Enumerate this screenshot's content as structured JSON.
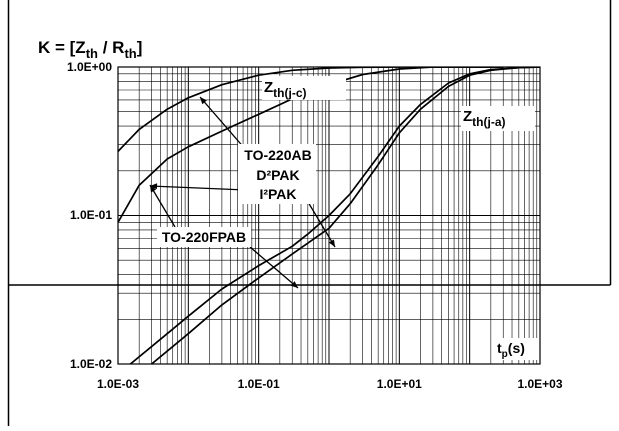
{
  "chart_data": {
    "type": "line",
    "title": "K = [Z",
    "title_sub1": "th",
    "title_mid": " / R",
    "title_sub2": "th",
    "title_end": "]",
    "xlabel": "t",
    "xlabel_sub": "p",
    "xlabel_suffix": "(s)",
    "x_scale": "log",
    "y_scale": "log",
    "xlim": [
      0.001,
      1000
    ],
    "ylim": [
      0.01,
      1
    ],
    "x_tick_labels": [
      "1.0E-03",
      "1.0E-01",
      "1.0E+01",
      "1.0E+03"
    ],
    "x_tick_values": [
      0.001,
      0.1,
      10,
      1000
    ],
    "y_tick_labels": [
      "1.0E-02",
      "1.0E-01",
      "1.0E+00"
    ],
    "y_tick_values": [
      0.01,
      0.1,
      1
    ],
    "grid": true,
    "series": [
      {
        "x": [
          0.001,
          0.002,
          0.005,
          0.01,
          0.03,
          0.1,
          0.3,
          1,
          3,
          10,
          30,
          100,
          300
        ],
        "y": [
          0.27,
          0.38,
          0.52,
          0.62,
          0.76,
          0.88,
          0.95,
          0.985,
          0.995,
          1.0,
          1.0,
          1.0,
          1.0
        ]
      },
      {
        "x": [
          0.001,
          0.002,
          0.005,
          0.01,
          0.03,
          0.1,
          0.3,
          1,
          3,
          10,
          30,
          100,
          300
        ],
        "y": [
          0.09,
          0.16,
          0.24,
          0.29,
          0.37,
          0.48,
          0.61,
          0.76,
          0.89,
          0.97,
          1.0,
          1.0,
          1.0
        ]
      },
      {
        "x": [
          0.0015,
          0.005,
          0.01,
          0.03,
          0.1,
          0.3,
          0.5,
          1,
          2,
          5,
          10,
          20,
          50,
          100,
          200,
          500,
          1000
        ],
        "y": [
          0.01,
          0.016,
          0.021,
          0.032,
          0.046,
          0.062,
          0.075,
          0.1,
          0.14,
          0.25,
          0.4,
          0.56,
          0.78,
          0.9,
          0.96,
          0.99,
          1.0
        ]
      },
      {
        "x": [
          0.003,
          0.01,
          0.03,
          0.1,
          0.3,
          1,
          2,
          5,
          10,
          20,
          50,
          100,
          200,
          500,
          1000
        ],
        "y": [
          0.01,
          0.016,
          0.025,
          0.038,
          0.055,
          0.082,
          0.12,
          0.22,
          0.36,
          0.52,
          0.74,
          0.88,
          0.95,
          0.99,
          1.0
        ]
      }
    ],
    "annotations": {
      "zthjc_main": "Z",
      "zthjc_sub": "th(j-c)",
      "zthja_main": "Z",
      "zthja_sub": "th(j-a)",
      "pkg_line1": "TO-220AB",
      "pkg_line2": "D²PAK",
      "pkg_line3": "I²PAK",
      "pkg_fp": "TO-220FPAB"
    }
  }
}
